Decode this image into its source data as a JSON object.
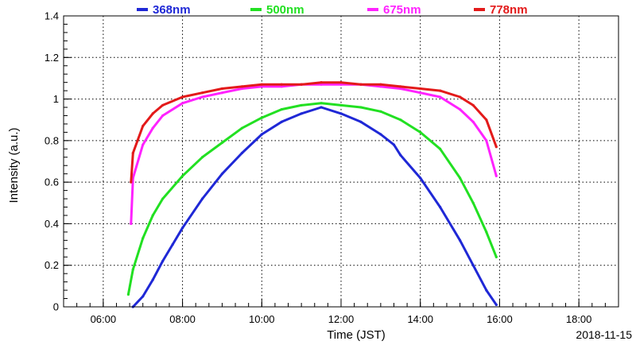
{
  "chart_data": {
    "type": "line",
    "xlabel": "Time (JST)",
    "ylabel": "Intensity (a.u.)",
    "date_label": "2018-11-15",
    "xlim": [
      "05:00",
      "19:00"
    ],
    "ylim": [
      0,
      1.4
    ],
    "grid": true,
    "legend_position": "top",
    "x_ticks": [
      "06:00",
      "08:00",
      "10:00",
      "12:00",
      "14:00",
      "16:00",
      "18:00"
    ],
    "y_ticks": [
      "0",
      "0.2",
      "0.4",
      "0.6",
      "0.8",
      "1",
      "1.2",
      "1.4"
    ],
    "series": [
      {
        "name": "368nm",
        "color": "#1f28d6",
        "x": [
          "06:45",
          "07:00",
          "07:15",
          "07:30",
          "07:45",
          "08:00",
          "08:30",
          "09:00",
          "09:30",
          "10:00",
          "10:30",
          "11:00",
          "11:30",
          "12:00",
          "12:30",
          "13:00",
          "13:20",
          "13:30",
          "14:00",
          "14:30",
          "15:00",
          "15:20",
          "15:40",
          "15:55"
        ],
        "y": [
          0.0,
          0.05,
          0.13,
          0.22,
          0.3,
          0.38,
          0.52,
          0.64,
          0.74,
          0.83,
          0.89,
          0.93,
          0.96,
          0.93,
          0.89,
          0.83,
          0.78,
          0.73,
          0.62,
          0.48,
          0.32,
          0.2,
          0.08,
          0.01
        ]
      },
      {
        "name": "500nm",
        "color": "#22e022",
        "x": [
          "06:38",
          "06:45",
          "07:00",
          "07:15",
          "07:30",
          "08:00",
          "08:30",
          "09:00",
          "09:30",
          "10:00",
          "10:30",
          "11:00",
          "11:30",
          "12:00",
          "12:30",
          "13:00",
          "13:30",
          "14:00",
          "14:30",
          "15:00",
          "15:20",
          "15:40",
          "15:55"
        ],
        "y": [
          0.06,
          0.18,
          0.33,
          0.44,
          0.52,
          0.63,
          0.72,
          0.79,
          0.86,
          0.91,
          0.95,
          0.97,
          0.98,
          0.97,
          0.96,
          0.94,
          0.9,
          0.84,
          0.76,
          0.62,
          0.5,
          0.36,
          0.24
        ]
      },
      {
        "name": "675nm",
        "color": "#ff22ff",
        "x": [
          "06:42",
          "06:45",
          "07:00",
          "07:15",
          "07:30",
          "08:00",
          "08:30",
          "09:00",
          "09:30",
          "10:00",
          "10:30",
          "11:00",
          "11:30",
          "12:00",
          "12:30",
          "13:00",
          "13:30",
          "14:00",
          "14:30",
          "15:00",
          "15:20",
          "15:40",
          "15:55"
        ],
        "y": [
          0.4,
          0.62,
          0.78,
          0.86,
          0.92,
          0.98,
          1.01,
          1.03,
          1.05,
          1.06,
          1.06,
          1.07,
          1.07,
          1.07,
          1.07,
          1.06,
          1.05,
          1.03,
          1.01,
          0.95,
          0.89,
          0.8,
          0.63
        ]
      },
      {
        "name": "778nm",
        "color": "#e31a1a",
        "x": [
          "06:42",
          "06:45",
          "07:00",
          "07:15",
          "07:30",
          "08:00",
          "08:30",
          "09:00",
          "09:30",
          "10:00",
          "10:30",
          "11:00",
          "11:30",
          "12:00",
          "12:30",
          "13:00",
          "13:30",
          "14:00",
          "14:30",
          "15:00",
          "15:20",
          "15:40",
          "15:55"
        ],
        "y": [
          0.6,
          0.74,
          0.87,
          0.93,
          0.97,
          1.01,
          1.03,
          1.05,
          1.06,
          1.07,
          1.07,
          1.07,
          1.08,
          1.08,
          1.07,
          1.07,
          1.06,
          1.05,
          1.04,
          1.01,
          0.97,
          0.9,
          0.77
        ]
      }
    ]
  }
}
